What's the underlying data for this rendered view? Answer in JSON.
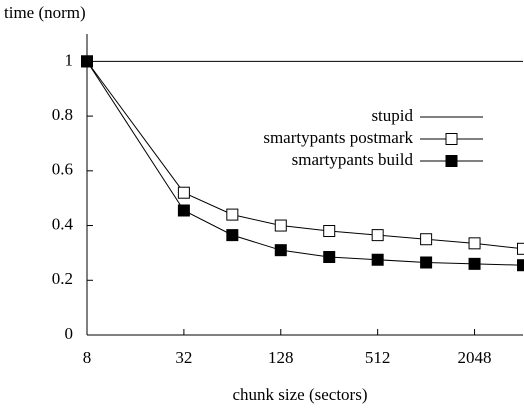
{
  "chart_data": {
    "type": "line",
    "y_label": "time (norm)",
    "x_label": "chunk size (sectors)",
    "x": [
      8,
      32,
      64,
      128,
      256,
      512,
      1024,
      2048,
      4096
    ],
    "xlim": [
      8,
      4096
    ],
    "xticks": [
      8,
      32,
      128,
      512,
      2048
    ],
    "x_log_base": 2,
    "ylim": [
      0,
      1.1
    ],
    "yticks": [
      0,
      0.2,
      0.4,
      0.6,
      0.8,
      1
    ],
    "legend_position": "upper right",
    "series": [
      {
        "name": "stupid",
        "color": "#000000",
        "marker": "none",
        "values": [
          1,
          1,
          1,
          1,
          1,
          1,
          1,
          1,
          1
        ]
      },
      {
        "name": "smartypants postmark",
        "color": "#000000",
        "marker": "open-square",
        "values": [
          1,
          0.52,
          0.44,
          0.4,
          0.38,
          0.365,
          0.35,
          0.335,
          0.315
        ]
      },
      {
        "name": "smartypants build",
        "color": "#000000",
        "marker": "filled-square",
        "values": [
          1,
          0.455,
          0.365,
          0.31,
          0.285,
          0.275,
          0.265,
          0.26,
          0.255
        ]
      }
    ]
  }
}
